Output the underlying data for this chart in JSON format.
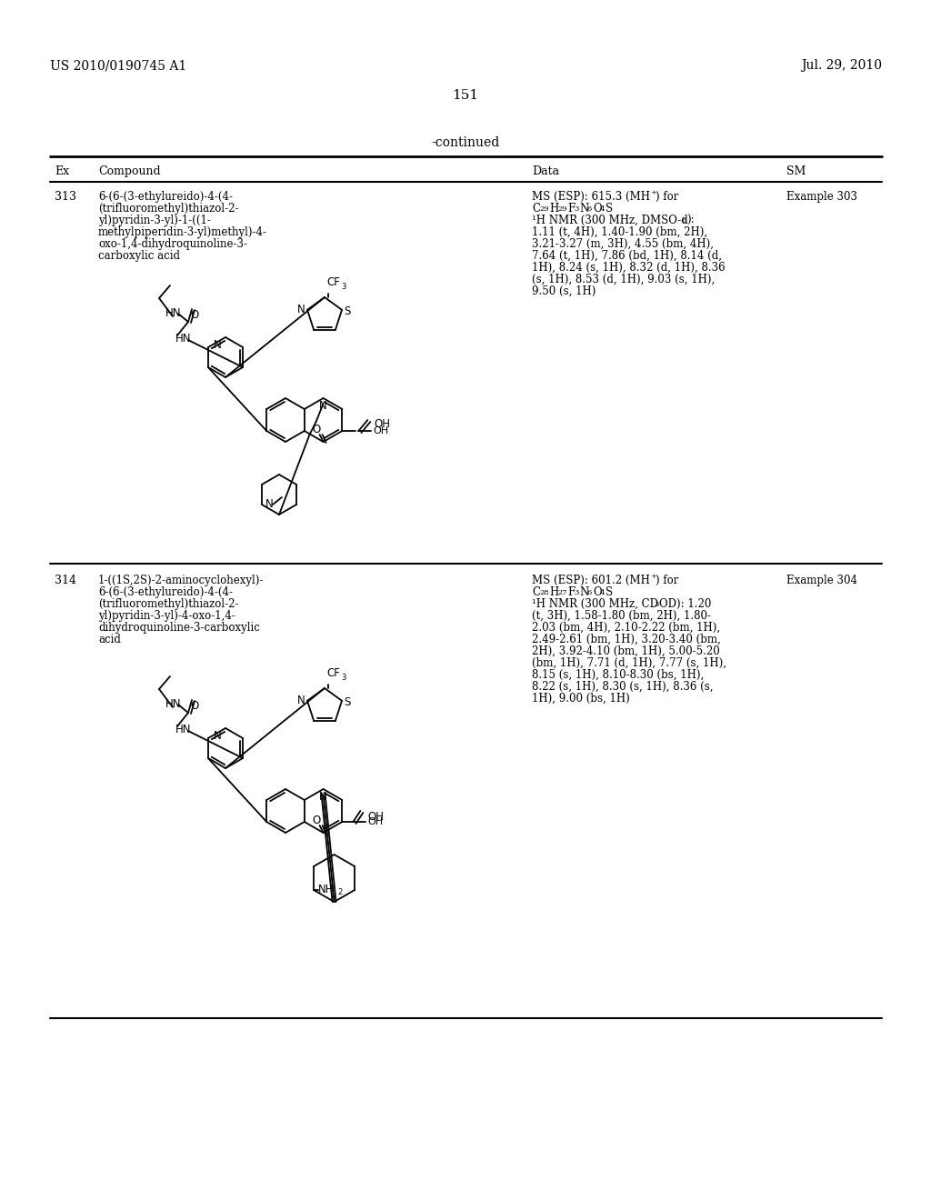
{
  "background_color": "#ffffff",
  "page_number": "151",
  "header_left": "US 2010/0190745 A1",
  "header_right": "Jul. 29, 2010",
  "continued_text": "-continued",
  "row1": {
    "ex": "313",
    "compound_lines": [
      "6-(6-(3-ethylureido)-4-(4-",
      "(trifluoromethyl)thiazol-2-",
      "yl)pyridin-3-yl)-1-((1-",
      "methylpiperidin-3-yl)methyl)-4-",
      "oxo-1,4-dihydroquinoline-3-",
      "carboxylic acid"
    ],
    "data_lines": [
      [
        "MS (ESP): 615.3 (MH",
        "+",
        ") for"
      ],
      [
        "C",
        "29",
        "H",
        "29",
        "F",
        "3",
        "N",
        "6",
        "O",
        "4",
        "S"
      ],
      [
        "¹H NMR (300 MHz, DMSO-d",
        "6",
        "):"
      ],
      "1.11 (t, 4H), 1.40-1.90 (bm, 2H),",
      "3.21-3.27 (m, 3H), 4.55 (bm, 4H),",
      "7.64 (t, 1H), 7.86 (bd, 1H), 8.14 (d,",
      "1H), 8.24 (s, 1H), 8.32 (d, 1H), 8.36",
      "(s, 1H), 8.53 (d, 1H), 9.03 (s, 1H),",
      "9.50 (s, 1H)"
    ],
    "sm": "Example 303"
  },
  "row2": {
    "ex": "314",
    "compound_lines": [
      "1-((1S,2S)-2-aminocyclohexyl)-",
      "6-(6-(3-ethylureido)-4-(4-",
      "(trifluoromethyl)thiazol-2-",
      "yl)pyridin-3-yl)-4-oxo-1,4-",
      "dihydroquinoline-3-carboxylic",
      "acid"
    ],
    "data_lines": [
      [
        "MS (ESP): 601.2 (MH",
        "+",
        ") for"
      ],
      [
        "C",
        "28",
        "H",
        "27",
        "F",
        "3",
        "N",
        "6",
        "O",
        "4",
        "S"
      ],
      [
        "¹H NMR (300 MHz, CD",
        "3",
        "OD): 1.20"
      ],
      "(t, 3H), 1.58-1.80 (bm, 2H), 1.80-",
      "2.03 (bm, 4H), 2.10-2.22 (bm, 1H),",
      "2.49-2.61 (bm, 1H), 3.20-3.40 (bm,",
      "2H), 3.92-4.10 (bm, 1H), 5.00-5.20",
      "(bm, 1H), 7.71 (d, 1H), 7.77 (s, 1H),",
      "8.15 (s, 1H), 8.10-8.30 (bs, 1H),",
      "8.22 (s, 1H), 8.30 (s, 1H), 8.36 (s,",
      "1H), 9.00 (bs, 1H)"
    ],
    "sm": "Example 304"
  }
}
